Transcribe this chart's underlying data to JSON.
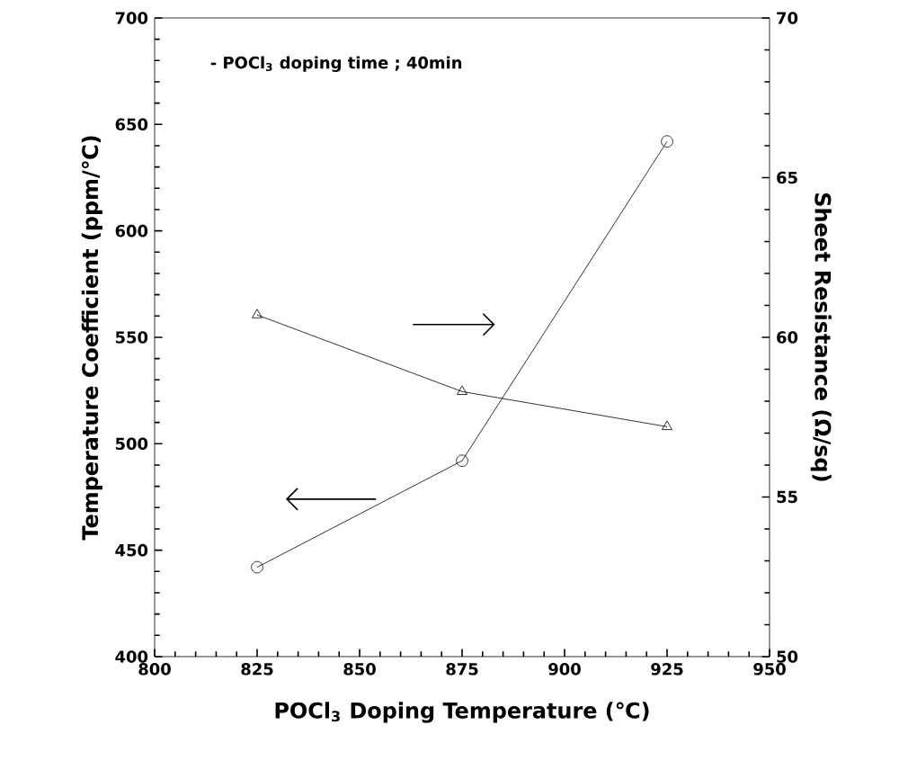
{
  "chart_data": {
    "type": "line",
    "xlabel": "POCl$_{3}$ Doping Temperature (℃)",
    "ylabel": "Temperature Coefficient (ppm/℃)",
    "y2label": "Sheet Resistance (Ω/sq)",
    "annotations": [
      "- POCl$_{3}$ doping time ; 40min"
    ],
    "x": [
      825,
      875,
      925
    ],
    "series": [
      {
        "color": "#000000",
        "values": [
          442,
          492,
          642
        ],
        "marker": "circle"
      },
      {
        "color": "#000000",
        "values": [
          60.7,
          58.3,
          57.2
        ],
        "marker": "triangle",
        "axis": "y2"
      }
    ],
    "xlim": [
      800,
      950
    ],
    "xticks": [
      800,
      825,
      850,
      875,
      900,
      925,
      950
    ],
    "ylim": [
      400,
      700
    ],
    "yticks": [
      400,
      450,
      500,
      550,
      600,
      650,
      700
    ],
    "y2lim": [
      50,
      70
    ],
    "y2ticks": [
      50,
      55,
      60,
      65,
      70
    ],
    "grid": false,
    "line_style": "solid"
  }
}
